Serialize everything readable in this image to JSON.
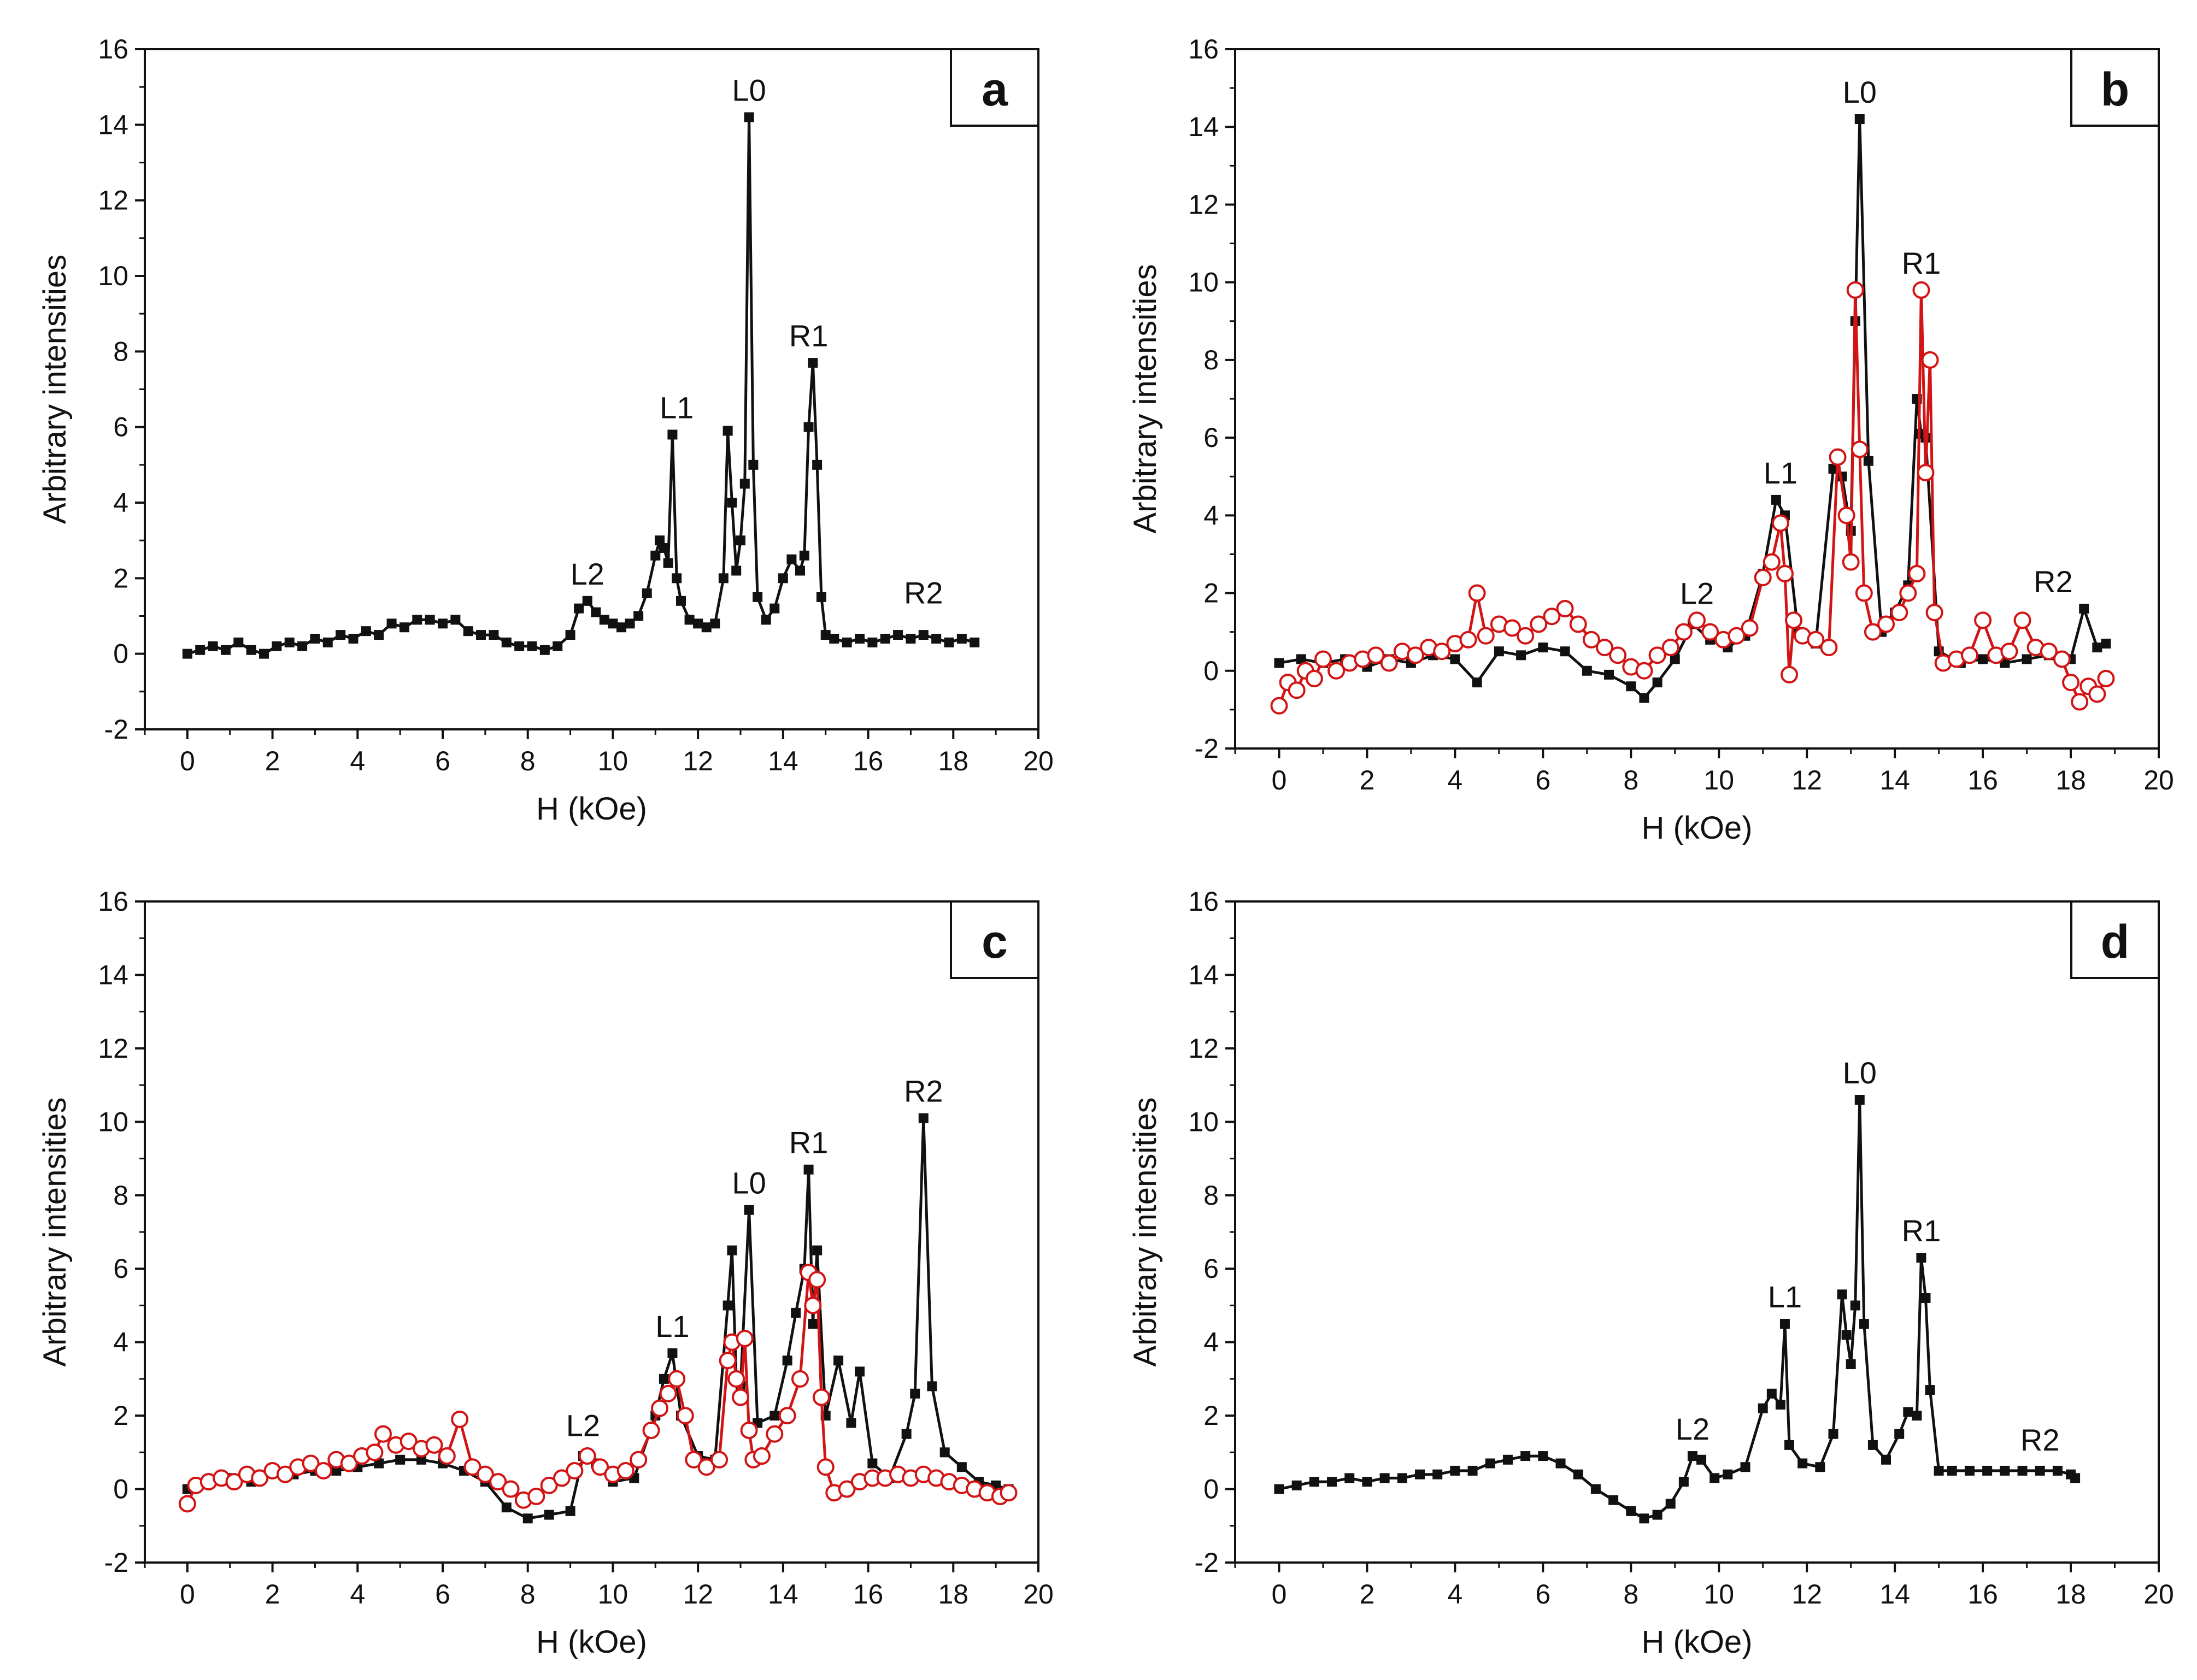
{
  "figure": {
    "panels": [
      "a",
      "b",
      "c",
      "d"
    ]
  },
  "colors": {
    "series_black": "#111111",
    "series_red": "#d21414",
    "marker_open_fill": "#ffffff"
  },
  "chart_data": [
    {
      "panel": "a",
      "type": "line",
      "title": "",
      "xlabel": "H (kOe)",
      "ylabel": "Arbitrary intensities",
      "xlim": [
        -1,
        20
      ],
      "ylim": [
        -2,
        16
      ],
      "xticks": [
        0,
        2,
        4,
        6,
        8,
        10,
        12,
        14,
        16,
        18,
        20
      ],
      "yticks": [
        -2,
        0,
        2,
        4,
        6,
        8,
        10,
        12,
        14,
        16
      ],
      "legend": "none",
      "series": [
        {
          "name": "black squares",
          "color": "#111111",
          "marker": "filled-square",
          "x": [
            0.0,
            0.3,
            0.6,
            0.9,
            1.2,
            1.5,
            1.8,
            2.1,
            2.4,
            2.7,
            3.0,
            3.3,
            3.6,
            3.9,
            4.2,
            4.5,
            4.8,
            5.1,
            5.4,
            5.7,
            6.0,
            6.3,
            6.6,
            6.9,
            7.2,
            7.5,
            7.8,
            8.1,
            8.4,
            8.7,
            9.0,
            9.2,
            9.4,
            9.6,
            9.8,
            10.0,
            10.2,
            10.4,
            10.6,
            10.8,
            11.0,
            11.1,
            11.2,
            11.3,
            11.4,
            11.5,
            11.6,
            11.8,
            12.0,
            12.2,
            12.4,
            12.6,
            12.7,
            12.8,
            12.9,
            13.0,
            13.1,
            13.2,
            13.3,
            13.4,
            13.6,
            13.8,
            14.0,
            14.2,
            14.4,
            14.5,
            14.6,
            14.7,
            14.8,
            14.9,
            15.0,
            15.2,
            15.5,
            15.8,
            16.1,
            16.4,
            16.7,
            17.0,
            17.3,
            17.6,
            17.9,
            18.2,
            18.5
          ],
          "y": [
            0.0,
            0.1,
            0.2,
            0.1,
            0.3,
            0.1,
            0.0,
            0.2,
            0.3,
            0.2,
            0.4,
            0.3,
            0.5,
            0.4,
            0.6,
            0.5,
            0.8,
            0.7,
            0.9,
            0.9,
            0.8,
            0.9,
            0.6,
            0.5,
            0.5,
            0.3,
            0.2,
            0.2,
            0.1,
            0.2,
            0.5,
            1.2,
            1.4,
            1.1,
            0.9,
            0.8,
            0.7,
            0.8,
            1.0,
            1.6,
            2.6,
            3.0,
            2.8,
            2.4,
            5.8,
            2.0,
            1.4,
            0.9,
            0.8,
            0.7,
            0.8,
            2.0,
            5.9,
            4.0,
            2.2,
            3.0,
            4.5,
            14.2,
            5.0,
            1.5,
            0.9,
            1.2,
            2.0,
            2.5,
            2.2,
            2.6,
            6.0,
            7.7,
            5.0,
            1.5,
            0.5,
            0.4,
            0.3,
            0.4,
            0.3,
            0.4,
            0.5,
            0.4,
            0.5,
            0.4,
            0.3,
            0.4,
            0.3
          ]
        }
      ],
      "peak_labels": [
        {
          "text": "L0",
          "x": 13.2,
          "y": 14.2
        },
        {
          "text": "L1",
          "x": 11.5,
          "y": 5.8
        },
        {
          "text": "L2",
          "x": 9.4,
          "y": 1.4
        },
        {
          "text": "R1",
          "x": 14.6,
          "y": 7.7
        },
        {
          "text": "R2",
          "x": 17.3,
          "y": 0.9
        }
      ]
    },
    {
      "panel": "b",
      "type": "line",
      "title": "",
      "xlabel": "H (kOe)",
      "ylabel": "Arbitrary intensities",
      "xlim": [
        -1,
        20
      ],
      "ylim": [
        -2,
        16
      ],
      "xticks": [
        0,
        2,
        4,
        6,
        8,
        10,
        12,
        14,
        16,
        18,
        20
      ],
      "yticks": [
        -2,
        0,
        2,
        4,
        6,
        8,
        10,
        12,
        14,
        16
      ],
      "legend": "none",
      "series": [
        {
          "name": "black squares",
          "color": "#111111",
          "marker": "filled-square",
          "x": [
            0.0,
            0.5,
            1.0,
            1.5,
            2.0,
            2.5,
            3.0,
            3.5,
            4.0,
            4.5,
            5.0,
            5.5,
            6.0,
            6.5,
            7.0,
            7.5,
            8.0,
            8.3,
            8.6,
            9.0,
            9.4,
            9.8,
            10.2,
            10.6,
            11.0,
            11.3,
            11.5,
            11.8,
            12.2,
            12.6,
            12.8,
            13.0,
            13.1,
            13.2,
            13.4,
            13.7,
            14.0,
            14.3,
            14.5,
            14.6,
            14.7,
            15.0,
            15.5,
            16.0,
            16.5,
            17.0,
            17.5,
            18.0,
            18.3,
            18.6,
            18.8
          ],
          "y": [
            0.2,
            0.3,
            0.2,
            0.3,
            0.1,
            0.3,
            0.2,
            0.4,
            0.3,
            -0.3,
            0.5,
            0.4,
            0.6,
            0.5,
            0.0,
            -0.1,
            -0.4,
            -0.7,
            -0.3,
            0.3,
            1.2,
            0.8,
            0.6,
            0.9,
            2.5,
            4.4,
            4.0,
            1.0,
            0.7,
            5.2,
            5.0,
            3.6,
            9.0,
            14.2,
            5.4,
            1.0,
            1.5,
            2.2,
            7.0,
            6.1,
            6.0,
            0.5,
            0.2,
            0.3,
            0.2,
            0.3,
            0.4,
            0.3,
            1.6,
            0.6,
            0.7
          ]
        },
        {
          "name": "red open circles",
          "color": "#d21414",
          "marker": "open-circle",
          "x": [
            0.0,
            0.2,
            0.4,
            0.6,
            0.8,
            1.0,
            1.3,
            1.6,
            1.9,
            2.2,
            2.5,
            2.8,
            3.1,
            3.4,
            3.7,
            4.0,
            4.3,
            4.5,
            4.7,
            5.0,
            5.3,
            5.6,
            5.9,
            6.2,
            6.5,
            6.8,
            7.1,
            7.4,
            7.7,
            8.0,
            8.3,
            8.6,
            8.9,
            9.2,
            9.5,
            9.8,
            10.1,
            10.4,
            10.7,
            11.0,
            11.2,
            11.4,
            11.5,
            11.6,
            11.7,
            11.9,
            12.2,
            12.5,
            12.7,
            12.9,
            13.0,
            13.1,
            13.2,
            13.3,
            13.5,
            13.8,
            14.1,
            14.3,
            14.5,
            14.6,
            14.7,
            14.8,
            14.9,
            15.1,
            15.4,
            15.7,
            16.0,
            16.3,
            16.6,
            16.9,
            17.2,
            17.5,
            17.8,
            18.0,
            18.2,
            18.4,
            18.6,
            18.8
          ],
          "y": [
            -0.9,
            -0.3,
            -0.5,
            0.0,
            -0.2,
            0.3,
            0.0,
            0.2,
            0.3,
            0.4,
            0.2,
            0.5,
            0.4,
            0.6,
            0.5,
            0.7,
            0.8,
            2.0,
            0.9,
            1.2,
            1.1,
            0.9,
            1.2,
            1.4,
            1.6,
            1.2,
            0.8,
            0.6,
            0.4,
            0.1,
            0.0,
            0.4,
            0.6,
            1.0,
            1.3,
            1.0,
            0.8,
            0.9,
            1.1,
            2.4,
            2.8,
            3.8,
            2.5,
            -0.1,
            1.3,
            0.9,
            0.8,
            0.6,
            5.5,
            4.0,
            2.8,
            9.8,
            5.7,
            2.0,
            1.0,
            1.2,
            1.5,
            2.0,
            2.5,
            9.8,
            5.1,
            8.0,
            1.5,
            0.2,
            0.3,
            0.4,
            1.3,
            0.4,
            0.5,
            1.3,
            0.6,
            0.5,
            0.3,
            -0.3,
            -0.8,
            -0.4,
            -0.6,
            -0.2
          ]
        }
      ],
      "peak_labels": [
        {
          "text": "L0",
          "x": 13.2,
          "y": 14.2
        },
        {
          "text": "L1",
          "x": 11.4,
          "y": 4.4
        },
        {
          "text": "L2",
          "x": 9.5,
          "y": 1.3
        },
        {
          "text": "R1",
          "x": 14.6,
          "y": 9.8
        },
        {
          "text": "R2",
          "x": 17.6,
          "y": 1.6
        }
      ]
    },
    {
      "panel": "c",
      "type": "line",
      "title": "",
      "xlabel": "H (kOe)",
      "ylabel": "Arbitrary intensities",
      "xlim": [
        -1,
        20
      ],
      "ylim": [
        -2,
        16
      ],
      "xticks": [
        0,
        2,
        4,
        6,
        8,
        10,
        12,
        14,
        16,
        18,
        20
      ],
      "yticks": [
        -2,
        0,
        2,
        4,
        6,
        8,
        10,
        12,
        14,
        16
      ],
      "legend": "none",
      "series": [
        {
          "name": "black squares",
          "color": "#111111",
          "marker": "filled-square",
          "x": [
            0.0,
            0.5,
            1.0,
            1.5,
            2.0,
            2.5,
            3.0,
            3.5,
            4.0,
            4.5,
            5.0,
            5.5,
            6.0,
            6.5,
            7.0,
            7.5,
            8.0,
            8.5,
            9.0,
            9.3,
            9.6,
            10.0,
            10.5,
            11.0,
            11.2,
            11.4,
            11.6,
            12.0,
            12.4,
            12.7,
            12.8,
            12.9,
            13.0,
            13.2,
            13.4,
            13.8,
            14.1,
            14.3,
            14.5,
            14.6,
            14.7,
            14.8,
            15.0,
            15.3,
            15.6,
            15.8,
            16.1,
            16.5,
            16.9,
            17.1,
            17.3,
            17.5,
            17.8,
            18.2,
            18.6,
            19.0,
            19.3
          ],
          "y": [
            0.0,
            0.2,
            0.3,
            0.2,
            0.5,
            0.4,
            0.5,
            0.5,
            0.6,
            0.7,
            0.8,
            0.8,
            0.7,
            0.5,
            0.2,
            -0.5,
            -0.8,
            -0.7,
            -0.6,
            0.9,
            0.7,
            0.2,
            0.3,
            2.0,
            3.0,
            3.7,
            2.0,
            0.9,
            0.8,
            5.0,
            6.5,
            3.0,
            2.8,
            7.6,
            1.8,
            2.0,
            3.5,
            4.8,
            6.0,
            8.7,
            4.5,
            6.5,
            2.0,
            3.5,
            1.8,
            3.2,
            0.7,
            0.3,
            1.5,
            2.6,
            10.1,
            2.8,
            1.0,
            0.6,
            0.2,
            0.1,
            0.0
          ]
        },
        {
          "name": "red open circles",
          "color": "#d21414",
          "marker": "open-circle",
          "x": [
            0.0,
            0.2,
            0.5,
            0.8,
            1.1,
            1.4,
            1.7,
            2.0,
            2.3,
            2.6,
            2.9,
            3.2,
            3.5,
            3.8,
            4.1,
            4.4,
            4.6,
            4.9,
            5.2,
            5.5,
            5.8,
            6.1,
            6.4,
            6.7,
            7.0,
            7.3,
            7.6,
            7.9,
            8.2,
            8.5,
            8.8,
            9.1,
            9.4,
            9.7,
            10.0,
            10.3,
            10.6,
            10.9,
            11.1,
            11.3,
            11.5,
            11.7,
            11.9,
            12.2,
            12.5,
            12.7,
            12.8,
            12.9,
            13.0,
            13.1,
            13.2,
            13.3,
            13.5,
            13.8,
            14.1,
            14.4,
            14.6,
            14.7,
            14.8,
            14.9,
            15.0,
            15.2,
            15.5,
            15.8,
            16.1,
            16.4,
            16.7,
            17.0,
            17.3,
            17.6,
            17.9,
            18.2,
            18.5,
            18.8,
            19.1,
            19.3
          ],
          "y": [
            -0.4,
            0.1,
            0.2,
            0.3,
            0.2,
            0.4,
            0.3,
            0.5,
            0.4,
            0.6,
            0.7,
            0.5,
            0.8,
            0.7,
            0.9,
            1.0,
            1.5,
            1.2,
            1.3,
            1.1,
            1.2,
            0.9,
            1.9,
            0.6,
            0.4,
            0.2,
            0.0,
            -0.3,
            -0.2,
            0.1,
            0.3,
            0.5,
            0.9,
            0.6,
            0.4,
            0.5,
            0.8,
            1.6,
            2.2,
            2.6,
            3.0,
            2.0,
            0.8,
            0.6,
            0.8,
            3.5,
            4.0,
            3.0,
            2.5,
            4.1,
            1.6,
            0.8,
            0.9,
            1.5,
            2.0,
            3.0,
            5.9,
            5.0,
            5.7,
            2.5,
            0.6,
            -0.1,
            0.0,
            0.2,
            0.3,
            0.3,
            0.4,
            0.3,
            0.4,
            0.3,
            0.2,
            0.1,
            0.0,
            -0.1,
            -0.2,
            -0.1
          ]
        }
      ],
      "peak_labels": [
        {
          "text": "L0",
          "x": 13.2,
          "y": 7.6
        },
        {
          "text": "L1",
          "x": 11.4,
          "y": 3.7
        },
        {
          "text": "L2",
          "x": 9.3,
          "y": 1.0
        },
        {
          "text": "R1",
          "x": 14.6,
          "y": 8.7
        },
        {
          "text": "R2",
          "x": 17.3,
          "y": 10.1
        }
      ]
    },
    {
      "panel": "d",
      "type": "line",
      "title": "",
      "xlabel": "H (kOe)",
      "ylabel": "Arbitrary intensities",
      "xlim": [
        -1,
        20
      ],
      "ylim": [
        -2,
        16
      ],
      "xticks": [
        0,
        2,
        4,
        6,
        8,
        10,
        12,
        14,
        16,
        18,
        20
      ],
      "yticks": [
        -2,
        0,
        2,
        4,
        6,
        8,
        10,
        12,
        14,
        16
      ],
      "legend": "none",
      "series": [
        {
          "name": "black squares",
          "color": "#111111",
          "marker": "filled-square",
          "x": [
            0.0,
            0.4,
            0.8,
            1.2,
            1.6,
            2.0,
            2.4,
            2.8,
            3.2,
            3.6,
            4.0,
            4.4,
            4.8,
            5.2,
            5.6,
            6.0,
            6.4,
            6.8,
            7.2,
            7.6,
            8.0,
            8.3,
            8.6,
            8.9,
            9.2,
            9.4,
            9.6,
            9.9,
            10.2,
            10.6,
            11.0,
            11.2,
            11.4,
            11.5,
            11.6,
            11.9,
            12.3,
            12.6,
            12.8,
            12.9,
            13.0,
            13.1,
            13.2,
            13.3,
            13.5,
            13.8,
            14.1,
            14.3,
            14.5,
            14.6,
            14.7,
            14.8,
            15.0,
            15.3,
            15.7,
            16.1,
            16.5,
            16.9,
            17.3,
            17.7,
            18.0,
            18.1
          ],
          "y": [
            0.0,
            0.1,
            0.2,
            0.2,
            0.3,
            0.2,
            0.3,
            0.3,
            0.4,
            0.4,
            0.5,
            0.5,
            0.7,
            0.8,
            0.9,
            0.9,
            0.7,
            0.4,
            0.0,
            -0.3,
            -0.6,
            -0.8,
            -0.7,
            -0.4,
            0.2,
            0.9,
            0.8,
            0.3,
            0.4,
            0.6,
            2.2,
            2.6,
            2.3,
            4.5,
            1.2,
            0.7,
            0.6,
            1.5,
            5.3,
            4.2,
            3.4,
            5.0,
            10.6,
            4.5,
            1.2,
            0.8,
            1.5,
            2.1,
            2.0,
            6.3,
            5.2,
            2.7,
            0.5,
            0.5,
            0.5,
            0.5,
            0.5,
            0.5,
            0.5,
            0.5,
            0.4,
            0.3
          ]
        }
      ],
      "peak_labels": [
        {
          "text": "L0",
          "x": 13.2,
          "y": 10.6
        },
        {
          "text": "L1",
          "x": 11.5,
          "y": 4.5
        },
        {
          "text": "L2",
          "x": 9.4,
          "y": 0.9
        },
        {
          "text": "R1",
          "x": 14.6,
          "y": 6.3
        },
        {
          "text": "R2",
          "x": 17.3,
          "y": 0.6
        }
      ]
    }
  ]
}
